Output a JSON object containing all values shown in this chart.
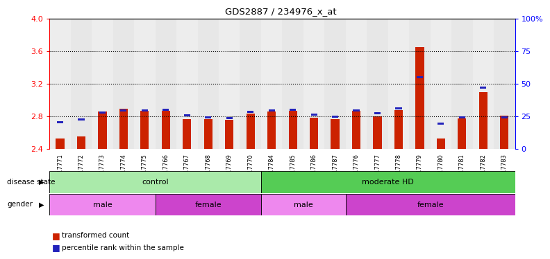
{
  "title": "GDS2887 / 234976_x_at",
  "samples": [
    "GSM217771",
    "GSM217772",
    "GSM217773",
    "GSM217774",
    "GSM217775",
    "GSM217766",
    "GSM217767",
    "GSM217768",
    "GSM217769",
    "GSM217770",
    "GSM217784",
    "GSM217785",
    "GSM217786",
    "GSM217787",
    "GSM217776",
    "GSM217777",
    "GSM217778",
    "GSM217779",
    "GSM217780",
    "GSM217781",
    "GSM217782",
    "GSM217783"
  ],
  "red_values": [
    2.53,
    2.56,
    2.86,
    2.9,
    2.87,
    2.87,
    2.77,
    2.77,
    2.76,
    2.84,
    2.86,
    2.87,
    2.79,
    2.77,
    2.87,
    2.8,
    2.88,
    3.65,
    2.53,
    2.78,
    3.1,
    2.81
  ],
  "blue_values": [
    2.72,
    2.75,
    2.84,
    2.86,
    2.86,
    2.87,
    2.8,
    2.78,
    2.77,
    2.85,
    2.86,
    2.87,
    2.81,
    2.79,
    2.86,
    2.83,
    2.89,
    3.27,
    2.7,
    2.78,
    3.14,
    2.78
  ],
  "ylim": [
    2.4,
    4.0
  ],
  "yticks_left": [
    2.4,
    2.8,
    3.2,
    3.6,
    4.0
  ],
  "yticks_right": [
    0,
    25,
    50,
    75,
    100
  ],
  "yticks_right_labels": [
    "0",
    "25",
    "50",
    "75",
    "100%"
  ],
  "grid_lines": [
    2.8,
    3.2,
    3.6
  ],
  "disease_state": [
    {
      "label": "control",
      "start": 0,
      "end": 10,
      "color": "#AAEAAA"
    },
    {
      "label": "moderate HD",
      "start": 10,
      "end": 22,
      "color": "#55CC55"
    }
  ],
  "gender": [
    {
      "label": "male",
      "start": 0,
      "end": 5,
      "color": "#EE88EE"
    },
    {
      "label": "female",
      "start": 5,
      "end": 10,
      "color": "#CC44CC"
    },
    {
      "label": "male",
      "start": 10,
      "end": 14,
      "color": "#EE88EE"
    },
    {
      "label": "female",
      "start": 14,
      "end": 22,
      "color": "#CC44CC"
    }
  ],
  "bar_color_red": "#CC2200",
  "bar_color_blue": "#2222BB",
  "bar_width": 0.4,
  "background_color": "#FFFFFF",
  "tick_bg_color_odd": "#CCCCCC",
  "tick_bg_color_even": "#BBBBBB"
}
